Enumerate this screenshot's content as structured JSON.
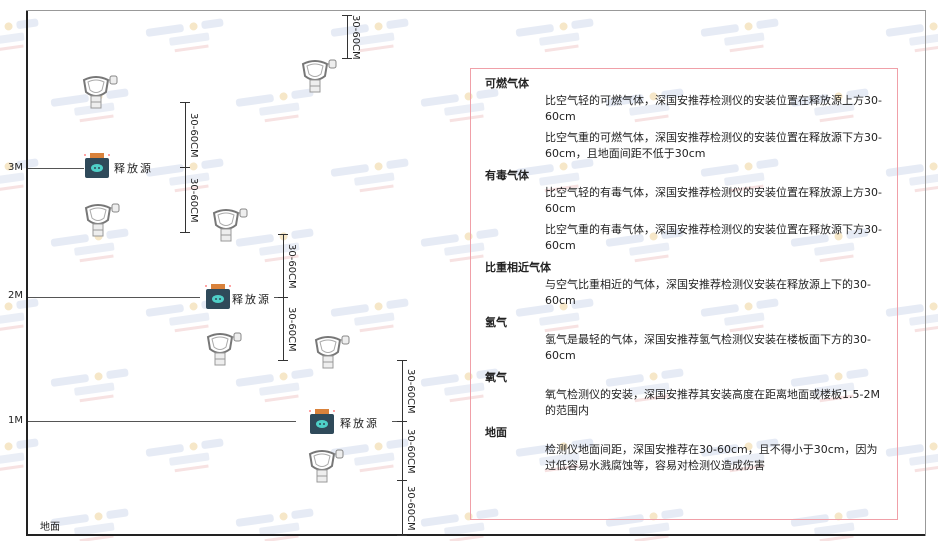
{
  "watermark": {
    "brand": "SINGOAN",
    "name": "深国安"
  },
  "levels": [
    "3M",
    "2M",
    "1M"
  ],
  "floor_label": "地面",
  "source_label": "释放源",
  "dimension_label": "30-60CM",
  "colors": {
    "box_border": "#f0a0a8",
    "source_body": "#2f4a5a",
    "source_cap": "#d9823b",
    "source_face": "#4fd0c8"
  },
  "notes": [
    {
      "title": "可燃气体",
      "paragraphs": [
        "比空气轻的可燃气体，深国安推荐检测仪的安装位置在释放源上方30-60cm",
        "比空气重的可燃气体，深国安推荐检测仪的安装位置在释放源下方30-60cm，且地面间距不低于30cm"
      ]
    },
    {
      "title": "有毒气体",
      "paragraphs": [
        "比空气轻的有毒气体，深国安推荐检测仪的安装位置在释放源上方30-60cm",
        "比空气重的有毒气体，深国安推荐检测仪的安装位置在释放源下方30-60cm"
      ]
    },
    {
      "title": "比重相近气体",
      "paragraphs": [
        "与空气比重相近的气体，深国安推荐检测仪安装在释放源上下的30-60cm"
      ]
    },
    {
      "title": "氢气",
      "paragraphs": [
        "氢气是最轻的气体，深国安推荐氢气检测仪安装在楼板面下方的30-60cm"
      ]
    },
    {
      "title": "氧气",
      "paragraphs": [
        "氧气检测仪的安装，深国安推荐其安装高度在距离地面或楼板1.5-2M的范围内"
      ]
    },
    {
      "title": "地面",
      "paragraphs": [
        "检测仪地面间距，深国安推荐在30-60cm，且不得小于30cm，因为过低容易水溅腐蚀等，容易对检测仪造成伤害"
      ]
    }
  ]
}
